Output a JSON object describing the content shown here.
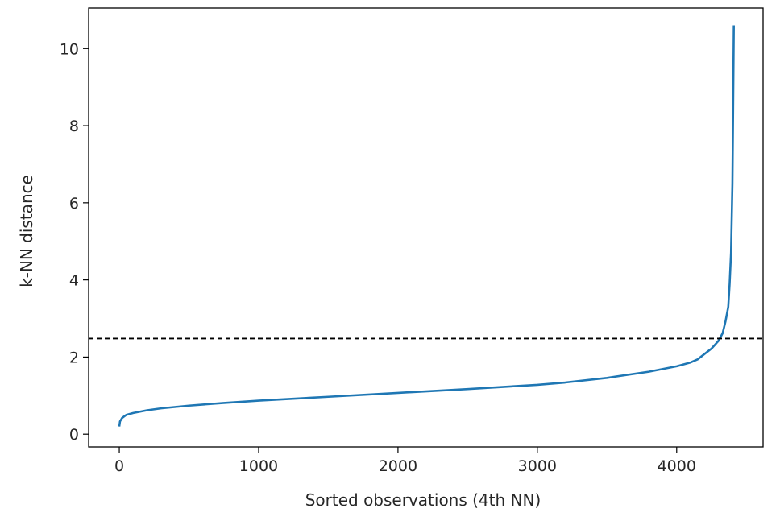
{
  "chart_data": {
    "type": "line",
    "title": "",
    "xlabel": "Sorted observations (4th NN)",
    "ylabel": "k-NN distance",
    "xlim": [
      -220,
      4620
    ],
    "ylim": [
      -0.33,
      11.05
    ],
    "xticks": [
      0,
      1000,
      2000,
      3000,
      4000
    ],
    "xtick_labels": [
      "0",
      "1000",
      "2000",
      "3000",
      "4000"
    ],
    "yticks": [
      0,
      2,
      4,
      6,
      8,
      10
    ],
    "ytick_labels": [
      "0",
      "2",
      "4",
      "6",
      "8",
      "10"
    ],
    "grid": false,
    "legend": "none",
    "series": [
      {
        "color": "#1f77b4",
        "x": [
          0,
          5,
          20,
          50,
          100,
          200,
          300,
          500,
          750,
          1000,
          1500,
          2000,
          2500,
          3000,
          3200,
          3500,
          3800,
          4000,
          4100,
          4150,
          4200,
          4250,
          4300,
          4330,
          4350,
          4370,
          4380,
          4390,
          4400,
          4405,
          4410
        ],
        "y": [
          0.2,
          0.33,
          0.42,
          0.5,
          0.55,
          0.62,
          0.67,
          0.74,
          0.81,
          0.87,
          0.97,
          1.07,
          1.17,
          1.28,
          1.34,
          1.46,
          1.62,
          1.76,
          1.86,
          1.94,
          2.08,
          2.22,
          2.42,
          2.62,
          2.92,
          3.3,
          3.9,
          4.7,
          6.5,
          8.5,
          10.6
        ]
      }
    ],
    "hlines": [
      {
        "y": 2.48,
        "style": "dashed",
        "color": "#000000"
      }
    ]
  }
}
